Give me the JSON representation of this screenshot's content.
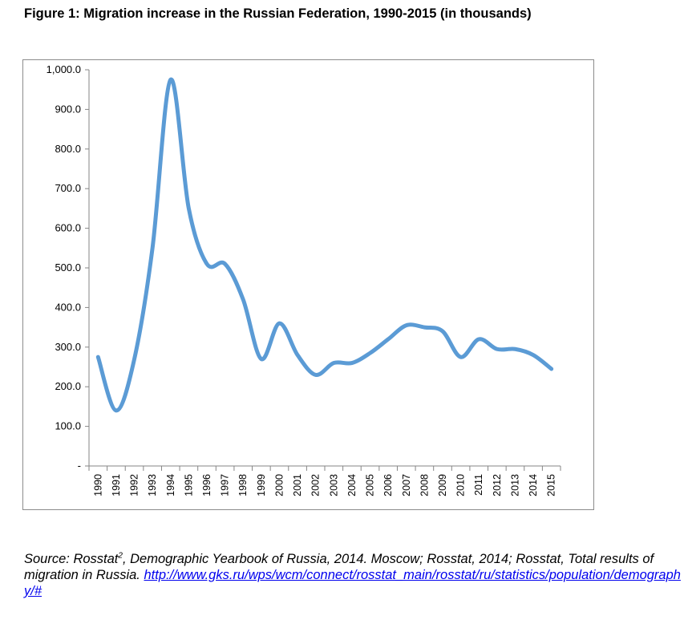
{
  "figure": {
    "title": "Figure 1: Migration increase in the Russian Federation, 1990-2015 (in thousands)"
  },
  "source": {
    "prefix": "Source: Rosstat",
    "footnote_mark": "2",
    "text": ", Demographic Yearbook of Russia, 2014. Moscow; Rosstat, 2014; Rosstat, Total results of migration in Russia.",
    "link": "http://www.gks.ru/wps/wcm/connect/rosstat_main/rosstat/ru/statistics/population/demography/#"
  },
  "colors": {
    "series": "#5b9bd5",
    "axis": "#868686"
  },
  "chart_data": {
    "type": "line",
    "title": "",
    "xlabel": "",
    "ylabel": "",
    "ylim": [
      0,
      1000
    ],
    "ytick_labels": [
      "-",
      "100.0",
      "200.0",
      "300.0",
      "400.0",
      "500.0",
      "600.0",
      "700.0",
      "800.0",
      "900.0",
      "1,000.0"
    ],
    "grid": false,
    "legend": "none",
    "smooth": true,
    "categories": [
      "1990",
      "1991",
      "1992",
      "1993",
      "1994",
      "1995",
      "1996",
      "1997",
      "1998",
      "1999",
      "2000",
      "2001",
      "2002",
      "2003",
      "2004",
      "2005",
      "2006",
      "2007",
      "2008",
      "2009",
      "2010",
      "2011",
      "2012",
      "2013",
      "2014",
      "2015"
    ],
    "series": [
      {
        "values": [
          275,
          140,
          270,
          550,
          975,
          650,
          510,
          510,
          420,
          270,
          360,
          280,
          230,
          260,
          260,
          285,
          320,
          355,
          350,
          340,
          275,
          320,
          295,
          295,
          280,
          245
        ]
      }
    ]
  }
}
